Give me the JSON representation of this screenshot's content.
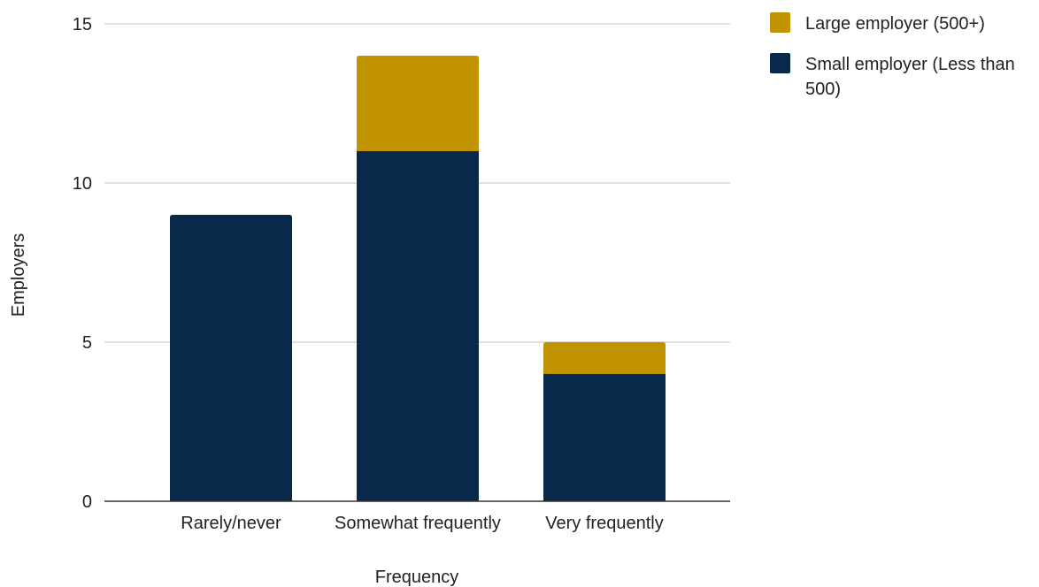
{
  "chart_data": {
    "type": "bar",
    "stacked": true,
    "title": "",
    "xlabel": "Frequency",
    "ylabel": "Employers",
    "categories": [
      "Rarely/never",
      "Somewhat frequently",
      "Very frequently"
    ],
    "series": [
      {
        "name": "Small employer (Less than 500)",
        "legend_lines": [
          "Small employer (Less than",
          "500)"
        ],
        "color": "#08294a",
        "values": [
          9,
          11,
          4
        ]
      },
      {
        "name": "Large employer (500+)",
        "legend_lines": [
          "Large employer (500+)"
        ],
        "color": "#c19300",
        "values": [
          0,
          3,
          1
        ]
      }
    ],
    "ylim": [
      0,
      15
    ],
    "yticks": [
      0,
      5,
      10,
      15
    ],
    "grid": true,
    "legend_position": "top-right",
    "legend_order": [
      "Large employer (500+)",
      "Small employer (Less than 500)"
    ]
  }
}
